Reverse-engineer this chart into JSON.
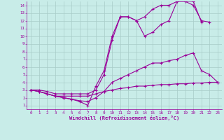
{
  "xlabel": "Windchill (Refroidissement éolien,°C)",
  "background_color": "#c8ece8",
  "grid_color": "#a8ccc8",
  "line_color": "#990099",
  "xlim": [
    -0.5,
    23.5
  ],
  "ylim": [
    0.5,
    14.5
  ],
  "xticks": [
    0,
    1,
    2,
    3,
    4,
    5,
    6,
    7,
    8,
    9,
    10,
    11,
    12,
    13,
    14,
    15,
    16,
    17,
    18,
    19,
    20,
    21,
    22,
    23
  ],
  "yticks": [
    1,
    2,
    3,
    4,
    5,
    6,
    7,
    8,
    9,
    10,
    11,
    12,
    13,
    14
  ],
  "series": [
    {
      "x": [
        0,
        1,
        2,
        3,
        4,
        5,
        6,
        7,
        8,
        9,
        10,
        11,
        12,
        13,
        14,
        15,
        16,
        17,
        18,
        19,
        20,
        21,
        22,
        23
      ],
      "y": [
        3.0,
        2.8,
        2.5,
        2.2,
        2.2,
        2.2,
        2.2,
        2.2,
        2.5,
        2.8,
        3.0,
        3.2,
        3.3,
        3.5,
        3.5,
        3.6,
        3.7,
        3.7,
        3.8,
        3.8,
        3.9,
        3.9,
        4.0,
        4.0
      ],
      "marker": "+",
      "markersize": 3,
      "linewidth": 0.8
    },
    {
      "x": [
        0,
        1,
        2,
        3,
        4,
        5,
        6,
        7,
        8,
        9,
        10,
        11,
        12,
        13,
        14,
        15,
        16,
        17,
        18,
        19,
        20,
        21,
        22,
        23
      ],
      "y": [
        3.0,
        2.8,
        2.5,
        2.2,
        2.0,
        1.8,
        1.6,
        1.5,
        2.0,
        2.8,
        4.0,
        4.5,
        5.0,
        5.5,
        6.0,
        6.5,
        6.5,
        6.8,
        7.0,
        7.5,
        7.8,
        5.5,
        5.0,
        4.0
      ],
      "marker": "+",
      "markersize": 3,
      "linewidth": 0.8
    },
    {
      "x": [
        0,
        1,
        2,
        3,
        4,
        5,
        6,
        7,
        8,
        9,
        10,
        11,
        12,
        13,
        14,
        15,
        16,
        17,
        18,
        19,
        20,
        21,
        22,
        23
      ],
      "y": [
        3.0,
        2.8,
        2.5,
        2.2,
        2.0,
        1.8,
        1.5,
        1.0,
        3.5,
        5.5,
        10.0,
        12.5,
        12.5,
        12.0,
        12.5,
        13.5,
        14.0,
        14.0,
        14.5,
        14.5,
        14.0,
        12.0,
        11.8,
        null
      ],
      "marker": "+",
      "markersize": 3,
      "linewidth": 0.8
    },
    {
      "x": [
        0,
        1,
        2,
        3,
        4,
        5,
        6,
        7,
        8,
        9,
        10,
        11,
        12,
        13,
        14,
        15,
        16,
        17,
        18,
        19,
        20,
        21,
        22,
        23
      ],
      "y": [
        3.0,
        3.0,
        2.8,
        2.5,
        2.5,
        2.5,
        2.5,
        2.5,
        3.0,
        5.0,
        9.5,
        12.5,
        12.5,
        12.0,
        10.0,
        10.5,
        11.5,
        12.0,
        14.5,
        14.5,
        14.5,
        11.8,
        null,
        null
      ],
      "marker": "+",
      "markersize": 3,
      "linewidth": 0.8
    }
  ]
}
